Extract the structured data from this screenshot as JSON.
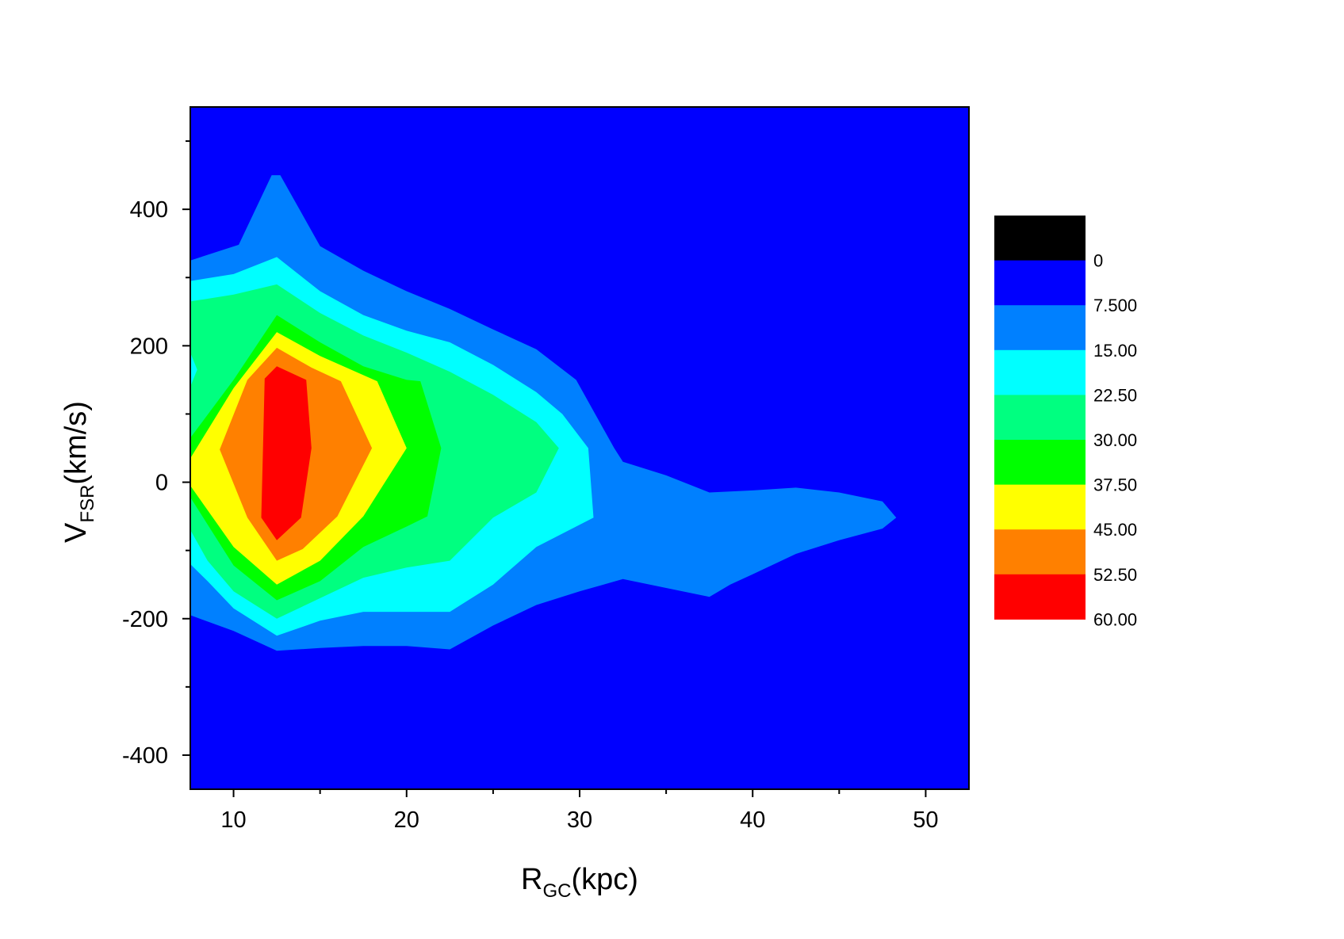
{
  "chart_data": {
    "type": "contour",
    "title": "",
    "xlabel": {
      "main": "R",
      "sub": "GC",
      "unit": "(kpc)"
    },
    "ylabel": {
      "main": "V",
      "sub": "FSR",
      "unit": "(km/s)"
    },
    "xlim": [
      7.5,
      52.5
    ],
    "ylim": [
      -450,
      550
    ],
    "x_ticks": [
      10,
      20,
      30,
      40,
      50
    ],
    "x_tick_labels": [
      "10",
      "20",
      "30",
      "40",
      "50"
    ],
    "y_ticks": [
      -400,
      -200,
      0,
      200,
      400
    ],
    "y_tick_labels": [
      "-400",
      "-200",
      "0",
      "200",
      "400"
    ],
    "background_color": "#0000FF",
    "grid": false,
    "legend": "right",
    "colorbar": {
      "levels": [
        "0",
        "7.500",
        "15.00",
        "22.50",
        "30.00",
        "37.50",
        "45.00",
        "52.50",
        "60.00"
      ],
      "colors": [
        "#000000",
        "#0000FF",
        "#0080FF",
        "#00FFFF",
        "#00FF80",
        "#00FF00",
        "#FFFF00",
        "#FF8000",
        "#FF0000"
      ]
    },
    "regions": [
      {
        "level": "7.500",
        "color": "#0080FF",
        "points": [
          [
            7.5,
            325
          ],
          [
            10.3,
            348
          ],
          [
            12.2,
            450
          ],
          [
            12.7,
            450
          ],
          [
            15,
            346
          ],
          [
            17.5,
            310
          ],
          [
            20,
            280
          ],
          [
            22.5,
            254
          ],
          [
            25,
            224
          ],
          [
            27.5,
            195
          ],
          [
            29.8,
            150
          ],
          [
            32,
            50
          ],
          [
            32.5,
            30
          ],
          [
            35,
            10
          ],
          [
            37.5,
            -15
          ],
          [
            40,
            -12
          ],
          [
            42.5,
            -8
          ],
          [
            45,
            -15
          ],
          [
            47.5,
            -28
          ],
          [
            48.3,
            -52
          ],
          [
            47.5,
            -68
          ],
          [
            45,
            -85
          ],
          [
            42.5,
            -105
          ],
          [
            40,
            -135
          ],
          [
            38.7,
            -150
          ],
          [
            37.5,
            -168
          ],
          [
            35,
            -155
          ],
          [
            32.5,
            -142
          ],
          [
            30,
            -160
          ],
          [
            27.5,
            -180
          ],
          [
            25,
            -210
          ],
          [
            22.5,
            -245
          ],
          [
            20,
            -240
          ],
          [
            17.5,
            -240
          ],
          [
            15,
            -243
          ],
          [
            12.5,
            -247
          ],
          [
            10,
            -218
          ],
          [
            7.5,
            -195
          ]
        ]
      },
      {
        "level": "15.00",
        "color": "#00FFFF",
        "points": [
          [
            7.5,
            295
          ],
          [
            10,
            305
          ],
          [
            12.5,
            330
          ],
          [
            15,
            280
          ],
          [
            17.5,
            245
          ],
          [
            20,
            222
          ],
          [
            22.5,
            205
          ],
          [
            25,
            172
          ],
          [
            27.5,
            132
          ],
          [
            29,
            100
          ],
          [
            30.5,
            50
          ],
          [
            30.8,
            -52
          ],
          [
            27.5,
            -95
          ],
          [
            25,
            -150
          ],
          [
            22.5,
            -190
          ],
          [
            20,
            -190
          ],
          [
            17.5,
            -190
          ],
          [
            15,
            -203
          ],
          [
            12.5,
            -225
          ],
          [
            10,
            -185
          ],
          [
            8.5,
            -145
          ],
          [
            7.5,
            -120
          ]
        ]
      },
      {
        "level": "22.50",
        "color": "#00FF80",
        "points": [
          [
            7.5,
            265
          ],
          [
            10,
            275
          ],
          [
            12.5,
            290
          ],
          [
            15,
            248
          ],
          [
            17.5,
            215
          ],
          [
            20,
            190
          ],
          [
            22.5,
            162
          ],
          [
            25,
            128
          ],
          [
            27.5,
            88
          ],
          [
            28.8,
            50
          ],
          [
            27.5,
            -15
          ],
          [
            25,
            -52
          ],
          [
            22.5,
            -115
          ],
          [
            20,
            -125
          ],
          [
            17.5,
            -140
          ],
          [
            15,
            -170
          ],
          [
            12.5,
            -200
          ],
          [
            10,
            -160
          ],
          [
            8.5,
            -115
          ],
          [
            7.5,
            -70
          ]
        ]
      },
      {
        "level": "30.00",
        "color": "#00FF00",
        "points": [
          [
            7.5,
            65
          ],
          [
            10,
            150
          ],
          [
            12.5,
            245
          ],
          [
            15,
            205
          ],
          [
            17.5,
            170
          ],
          [
            20,
            150
          ],
          [
            20.8,
            148
          ],
          [
            22,
            50
          ],
          [
            21.2,
            -50
          ],
          [
            20,
            -65
          ],
          [
            17.5,
            -95
          ],
          [
            15,
            -145
          ],
          [
            12.5,
            -173
          ],
          [
            10,
            -122
          ],
          [
            7.5,
            -22
          ]
        ]
      },
      {
        "level": "37.50",
        "color": "#FFFF00",
        "points": [
          [
            7.5,
            35
          ],
          [
            10,
            138
          ],
          [
            12.5,
            220
          ],
          [
            15,
            185
          ],
          [
            18.3,
            148
          ],
          [
            20,
            50
          ],
          [
            17.5,
            -50
          ],
          [
            15,
            -115
          ],
          [
            12.5,
            -150
          ],
          [
            10,
            -95
          ],
          [
            7.5,
            -5
          ]
        ]
      },
      {
        "level": "45.00",
        "color": "#FF8000",
        "points": [
          [
            9.2,
            48
          ],
          [
            10.8,
            150
          ],
          [
            12.5,
            197
          ],
          [
            14.5,
            168
          ],
          [
            16.2,
            148
          ],
          [
            18,
            50
          ],
          [
            16,
            -50
          ],
          [
            14,
            -98
          ],
          [
            12.5,
            -115
          ],
          [
            10.8,
            -52
          ]
        ]
      },
      {
        "level": "52.50",
        "color": "#FF0000",
        "points": [
          [
            11.7,
            50
          ],
          [
            11.8,
            152
          ],
          [
            12.5,
            170
          ],
          [
            14.2,
            150
          ],
          [
            14.5,
            50
          ],
          [
            13.9,
            -52
          ],
          [
            12.5,
            -85
          ],
          [
            11.6,
            -52
          ]
        ]
      },
      {
        "level": "15.00",
        "color": "#00FFFF",
        "points": [
          [
            7.5,
            190
          ],
          [
            7.9,
            165
          ],
          [
            7.5,
            140
          ]
        ]
      }
    ]
  }
}
